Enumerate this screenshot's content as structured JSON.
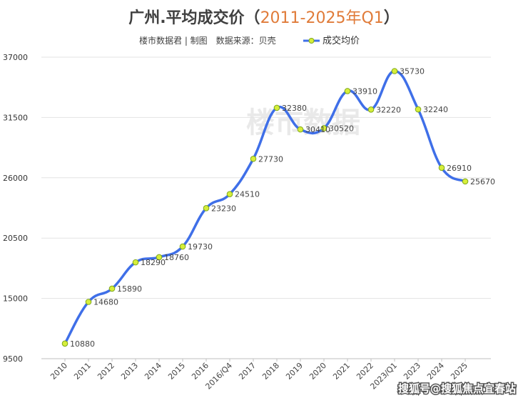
{
  "title": {
    "main": "广州.平均成交价",
    "open_paren": "（",
    "accent": "2011-2025年Q1",
    "close_paren": "）"
  },
  "subtitle": "楼市数据君 | 制图　数据来源：贝壳",
  "background_watermark": "楼市数据",
  "footer_watermark": "搜狐号@搜狐焦点宜春站",
  "colors": {
    "line": "#3f6fe8",
    "marker_fill": "#d6ee3a",
    "marker_stroke": "#7fa81c",
    "title_accent": "#e07b39",
    "grid": "#e3e3e3",
    "axis": "#bfbfbf"
  },
  "chart_data": {
    "type": "line",
    "title": "广州.平均成交价（2011-2025年Q1）",
    "categories": [
      "2010",
      "2011",
      "2012",
      "2013",
      "2014",
      "2015",
      "2016",
      "2016/Q4",
      "2017",
      "2018",
      "2019",
      "2020",
      "2021",
      "2022",
      "2023/Q1",
      "2023",
      "2024",
      "2025"
    ],
    "series": [
      {
        "name": "成交均价",
        "values": [
          10880,
          14680,
          15890,
          18290,
          18760,
          19730,
          23230,
          24510,
          27730,
          32380,
          30410,
          30520,
          33910,
          32220,
          35730,
          32240,
          26910,
          25670
        ]
      }
    ],
    "yticks": [
      9500,
      15000,
      20500,
      26000,
      31500,
      37000
    ],
    "ylim": [
      9500,
      37000
    ],
    "grid": "horizontal",
    "legend": "top-right",
    "data_labels": true
  }
}
